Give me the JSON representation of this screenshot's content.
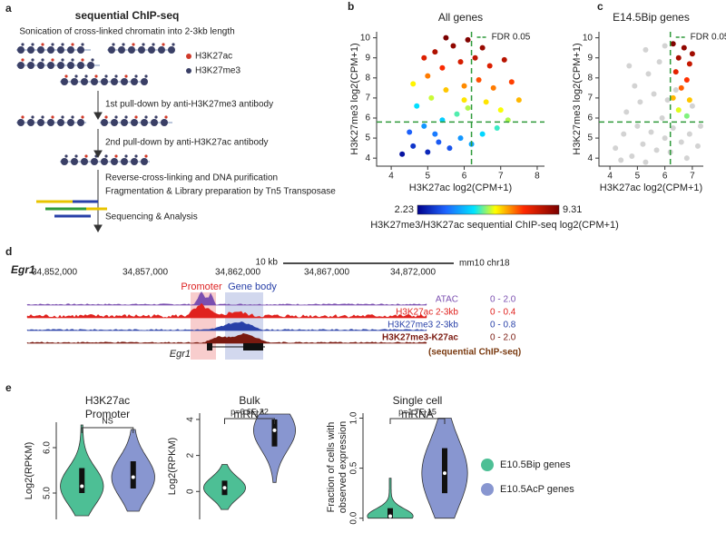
{
  "panel_a": {
    "label": "a",
    "title": "sequential ChIP-seq",
    "subtitle": "Sonication of cross-linked chromatin into 2-3kb length",
    "legend": [
      "H3K27ac",
      "H3K27me3"
    ],
    "steps": [
      "1st pull-down by anti-H3K27me3 antibody",
      "2nd pull-down by anti-H3K27ac antibody",
      "Reverse-cross-linking and DNA purification",
      "Fragmentation & Library preparation by Tn5 Transposase",
      "Sequencing & Analysis"
    ]
  },
  "chart_data": [
    {
      "type": "scatter",
      "panel": "b",
      "title": "All genes",
      "xlabel": "H3K27ac log2(CPM+1)",
      "ylabel": "H3K27me3 log2(CPM+1)",
      "xlim": [
        3.6,
        8.2
      ],
      "ylim": [
        3.6,
        10.3
      ],
      "xticks": [
        4,
        5,
        6,
        7,
        8
      ],
      "yticks": [
        4,
        5,
        6,
        7,
        8,
        9,
        10
      ],
      "fdr": {
        "label": "FDR 0.05",
        "x": 6.2,
        "y": 5.8,
        "color": "#2e9a3a"
      },
      "points": {
        "x": [
          4.3,
          4.6,
          5.0,
          5.3,
          5.6,
          5.9,
          6.2,
          6.5,
          6.9,
          7.2,
          4.5,
          4.9,
          5.4,
          5.8,
          6.1,
          6.6,
          7.0,
          7.5,
          4.7,
          5.1,
          5.5,
          6.0,
          6.4,
          6.8,
          7.3,
          4.6,
          5.0,
          5.4,
          5.9,
          6.3,
          6.7,
          7.1,
          5.2,
          5.7,
          6.1,
          6.5,
          4.9,
          5.5,
          6.0,
          5.2
        ],
        "y": [
          4.2,
          4.6,
          4.3,
          4.8,
          4.5,
          5.0,
          4.7,
          5.2,
          5.5,
          5.9,
          5.3,
          5.6,
          5.9,
          6.2,
          6.5,
          6.8,
          6.4,
          6.9,
          6.6,
          7.0,
          7.4,
          7.6,
          7.9,
          7.5,
          7.8,
          7.7,
          8.1,
          8.5,
          8.8,
          9.0,
          8.6,
          8.9,
          9.3,
          9.6,
          9.9,
          9.5,
          9.0,
          10.0,
          6.9,
          5.2
        ],
        "z": [
          2.5,
          3.0,
          2.8,
          3.5,
          3.4,
          4.2,
          4.4,
          4.9,
          5.3,
          5.8,
          3.6,
          4.2,
          4.8,
          5.4,
          5.8,
          6.3,
          6.1,
          6.6,
          5.0,
          5.9,
          6.5,
          6.9,
          7.3,
          7.0,
          7.4,
          6.2,
          7.0,
          7.6,
          8.1,
          8.4,
          8.0,
          8.5,
          8.6,
          9.0,
          9.2,
          8.9,
          8.0,
          9.3,
          6.3,
          3.9
        ]
      }
    },
    {
      "type": "scatter",
      "panel": "c",
      "title": "E14.5Bip genes",
      "xlabel": "H3K27ac log2(CPM+1)",
      "ylabel": "H3K27me3 log2(CPM+1)",
      "xlim": [
        3.6,
        7.4
      ],
      "ylim": [
        3.6,
        10.3
      ],
      "xticks": [
        4,
        5,
        6,
        7
      ],
      "yticks": [
        4,
        5,
        6,
        7,
        8,
        9,
        10
      ],
      "fdr": {
        "label": "FDR 0.05",
        "x": 6.2,
        "y": 5.8,
        "color": "#2e9a3a"
      },
      "gray_points": {
        "color": "#c8c8c8",
        "x": [
          4.2,
          4.5,
          4.8,
          5.0,
          5.2,
          5.5,
          5.7,
          6.0,
          6.3,
          6.6,
          6.9,
          7.2,
          4.6,
          5.1,
          5.6,
          6.1,
          4.9,
          5.4,
          5.8,
          6.0,
          5.3,
          4.7,
          6.4,
          7.0,
          5.9,
          4.4,
          6.8,
          5.3,
          6.2,
          7.3
        ],
        "y": [
          4.5,
          5.2,
          4.1,
          5.6,
          4.7,
          5.3,
          4.4,
          5.0,
          5.5,
          4.8,
          5.2,
          4.6,
          6.3,
          6.8,
          7.2,
          6.9,
          7.6,
          8.2,
          8.8,
          9.6,
          9.4,
          8.6,
          7.4,
          6.6,
          6.0,
          3.9,
          4.0,
          3.8,
          4.3,
          5.6
        ]
      },
      "points": {
        "x": [
          6.3,
          6.7,
          6.5,
          6.9,
          6.4,
          6.8,
          6.6,
          6.3,
          6.9,
          6.5,
          6.8,
          7.0
        ],
        "y": [
          9.7,
          9.5,
          9.0,
          8.7,
          8.3,
          7.9,
          7.5,
          7.0,
          6.9,
          6.4,
          6.1,
          9.2
        ],
        "z": [
          9.2,
          9.0,
          8.7,
          8.3,
          7.9,
          7.5,
          7.2,
          6.6,
          6.5,
          6.0,
          5.6,
          8.8
        ]
      }
    },
    {
      "type": "violin",
      "title": [
        "H3K27ac",
        "Promoter"
      ],
      "ylabel": "Log2(RPKM)",
      "annotation": "NS",
      "ylim": [
        4.42,
        6.56
      ],
      "yticks": [
        {
          "value": 5,
          "label": "5.0"
        },
        {
          "value": 6,
          "label": "6.0"
        }
      ],
      "series": [
        {
          "name": "E10.5Bip genes",
          "color": "#4dbf95",
          "min": 4.5,
          "q1": 5.0,
          "median": 5.15,
          "q3": 5.55,
          "max": 6.5
        },
        {
          "name": "E10.5AcP genes",
          "color": "#8896d0",
          "min": 4.6,
          "q1": 5.1,
          "median": 5.35,
          "q3": 5.7,
          "max": 6.4
        }
      ]
    },
    {
      "type": "violin",
      "title": [
        "Bulk",
        "mRNA"
      ],
      "ylabel": "Log2(RPKM)",
      "annotation": "p=6.6E-22",
      "ylim": [
        -1.55,
        4.35
      ],
      "yticks": [
        0,
        2,
        4
      ],
      "series": [
        {
          "name": "E10.5Bip genes",
          "color": "#4dbf95",
          "min": -1.0,
          "q1": -0.2,
          "median": 0.2,
          "q3": 0.6,
          "max": 1.5
        },
        {
          "name": "E10.5AcP genes",
          "color": "#8896d0",
          "min": 0.5,
          "q1": 2.5,
          "median": 3.4,
          "q3": 4.0,
          "max": 4.3
        }
      ]
    },
    {
      "type": "violin",
      "title": [
        "Single cell",
        "mRNA"
      ],
      "ylabel": [
        "Fraction of cells with",
        "observed expression"
      ],
      "annotation": "p=1.7E-15",
      "ylim": [
        -0.03,
        1.05
      ],
      "yticks": [
        {
          "value": 0,
          "label": "0.0"
        },
        0.5,
        {
          "value": 1,
          "label": "1.0"
        }
      ],
      "series": [
        {
          "name": "E10.5Bip genes",
          "color": "#4dbf95",
          "min": 0.0,
          "q1": 0.0,
          "median": 0.02,
          "q3": 0.1,
          "max": 0.4
        },
        {
          "name": "E10.5AcP genes",
          "color": "#8896d0",
          "min": 0.0,
          "q1": 0.25,
          "median": 0.45,
          "q3": 0.7,
          "max": 1.0
        }
      ]
    }
  ],
  "colorbar": {
    "ticks": [
      2.23,
      9.31
    ],
    "label": "H3K27me3/H3K27ac sequential ChIP-seq log2(CPM+1)"
  },
  "panel_d": {
    "label": "d",
    "gene": "Egr1",
    "scale": "10 kb",
    "genome": "mm10 chr18",
    "coordinates": [
      "34,852,000",
      "34,857,000",
      "34,862,000",
      "34,867,000",
      "34,872,000"
    ],
    "regions": [
      "Promoter",
      "Gene body"
    ],
    "tracks": [
      {
        "name": "ATAC",
        "range": "0 - 2.0",
        "color": "#7b4fb0"
      },
      {
        "name": "H3K27ac 2-3kb",
        "range": "0 - 0.4",
        "color": "#e0221e"
      },
      {
        "name": "H3K27me3 2-3kb",
        "range": "0 - 0.8",
        "color": "#2840a8"
      },
      {
        "name": "H3K27me3-K27ac",
        "range": "0 - 2.0",
        "color": "#7a1a10"
      }
    ],
    "track_note": "(sequential ChIP-seq)",
    "gene_label": "Egr1"
  },
  "panel_e": {
    "label": "e"
  }
}
